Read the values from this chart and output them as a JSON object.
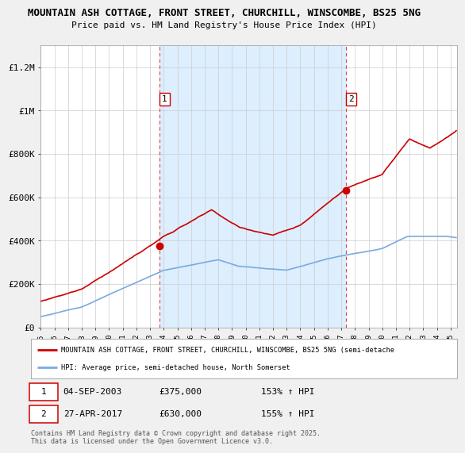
{
  "title_line1": "MOUNTAIN ASH COTTAGE, FRONT STREET, CHURCHILL, WINSCOMBE, BS25 5NG",
  "title_line2": "Price paid vs. HM Land Registry's House Price Index (HPI)",
  "ylabel_ticks": [
    "£0",
    "£200K",
    "£400K",
    "£600K",
    "£800K",
    "£1M",
    "£1.2M"
  ],
  "ytick_values": [
    0,
    200000,
    400000,
    600000,
    800000,
    1000000,
    1200000
  ],
  "ylim": [
    0,
    1300000
  ],
  "transaction1_date": "04-SEP-2003",
  "transaction1_price": 375000,
  "transaction1_label": "153% ↑ HPI",
  "transaction1_x": 2003.67,
  "transaction2_date": "27-APR-2017",
  "transaction2_price": 630000,
  "transaction2_label": "155% ↑ HPI",
  "transaction2_x": 2017.32,
  "legend_line1": "MOUNTAIN ASH COTTAGE, FRONT STREET, CHURCHILL, WINSCOMBE, BS25 5NG (semi-detache",
  "legend_line2": "HPI: Average price, semi-detached house, North Somerset",
  "footnote": "Contains HM Land Registry data © Crown copyright and database right 2025.\nThis data is licensed under the Open Government Licence v3.0.",
  "property_color": "#cc0000",
  "hpi_color": "#7aaadd",
  "vline_color": "#dd4444",
  "shade_color": "#ddeeff",
  "background_color": "#f0f0f0",
  "plot_bg_color": "#ffffff"
}
